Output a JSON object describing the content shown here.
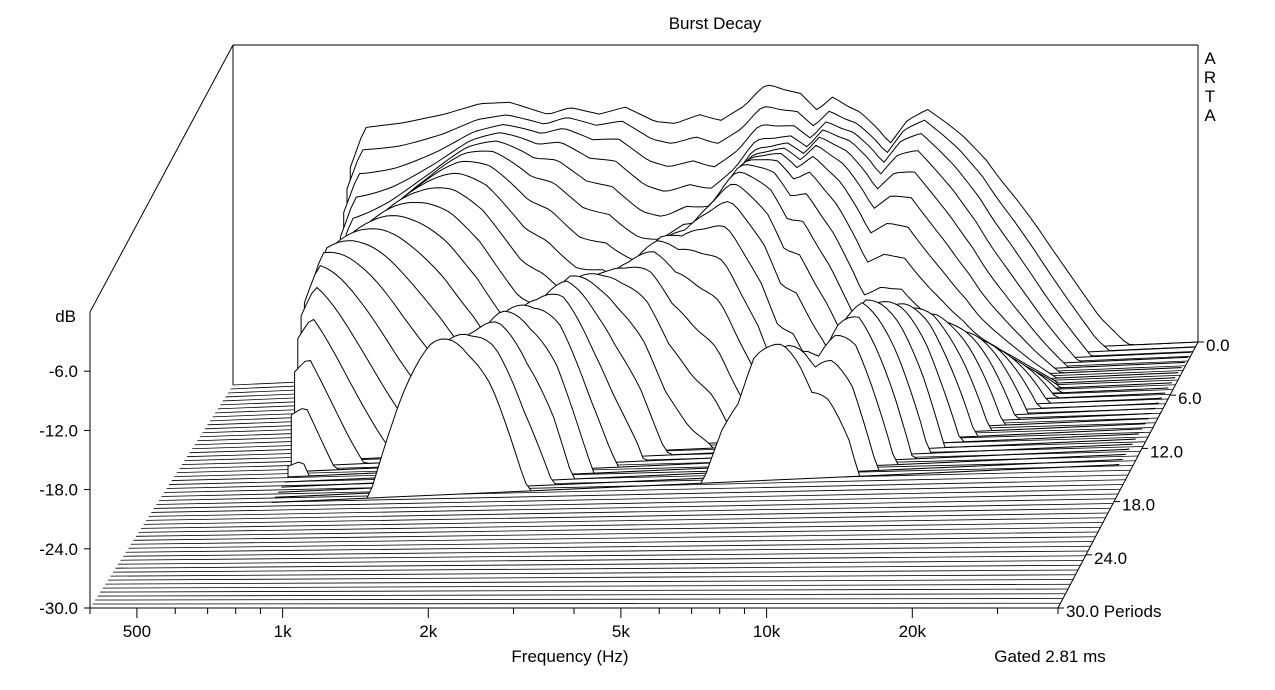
{
  "chart_data": {
    "type": "waterfall",
    "title": "Burst Decay",
    "watermark": "ARTA",
    "xlabel": "Frequency (Hz)",
    "ylabel": "dB",
    "zlabel": "Periods",
    "footnote": "Gated 2.81 ms",
    "x_scale": "log",
    "xlim": [
      400,
      40000
    ],
    "ylim": [
      -30,
      0
    ],
    "zlim": [
      0,
      30
    ],
    "x_ticks": [
      500,
      1000,
      2000,
      5000,
      10000,
      20000
    ],
    "x_tick_labels": [
      "500",
      "1k",
      "2k",
      "5k",
      "10k",
      "20k"
    ],
    "y_ticks": [
      -6,
      -12,
      -18,
      -24,
      -30
    ],
    "y_tick_labels": [
      "-6.0",
      "-12.0",
      "-18.0",
      "-24.0",
      "-30.0"
    ],
    "z_ticks": [
      0,
      6,
      12,
      18,
      24,
      30
    ],
    "z_tick_labels": [
      "0.0",
      "6.0",
      "12.0",
      "18.0",
      "24.0",
      "30.0 Periods"
    ],
    "front_response_db": {
      "freq_hz": [
        700,
        750,
        900,
        1100,
        1300,
        1500,
        1800,
        2000,
        2300,
        2600,
        3000,
        3300,
        3700,
        4100,
        4600,
        5000,
        5200,
        5500,
        6000,
        6500,
        7000,
        7500,
        8000,
        8700,
        9200,
        10000,
        11000,
        12000,
        13000,
        14500,
        15500,
        17000,
        18500,
        20000,
        22000,
        25000,
        28000,
        32000
      ],
      "level_db": [
        -6.5,
        -2.5,
        -2.2,
        -1.5,
        -0.6,
        -0.6,
        -2.0,
        -1.4,
        -2.2,
        -1.6,
        -3.2,
        -3.5,
        -2.7,
        -3.4,
        -2.0,
        -0.2,
        0.0,
        -0.5,
        -1.0,
        -2.8,
        -1.5,
        -2.5,
        -3.2,
        -5.0,
        -6.5,
        -4.2,
        -3.2,
        -4.6,
        -6.0,
        -8.5,
        -10.5,
        -13.0,
        -15.5,
        -18.0,
        -21.0,
        -25.0,
        -27.5,
        -29.5
      ]
    },
    "decay_lines": 25,
    "floor_db": -30
  }
}
